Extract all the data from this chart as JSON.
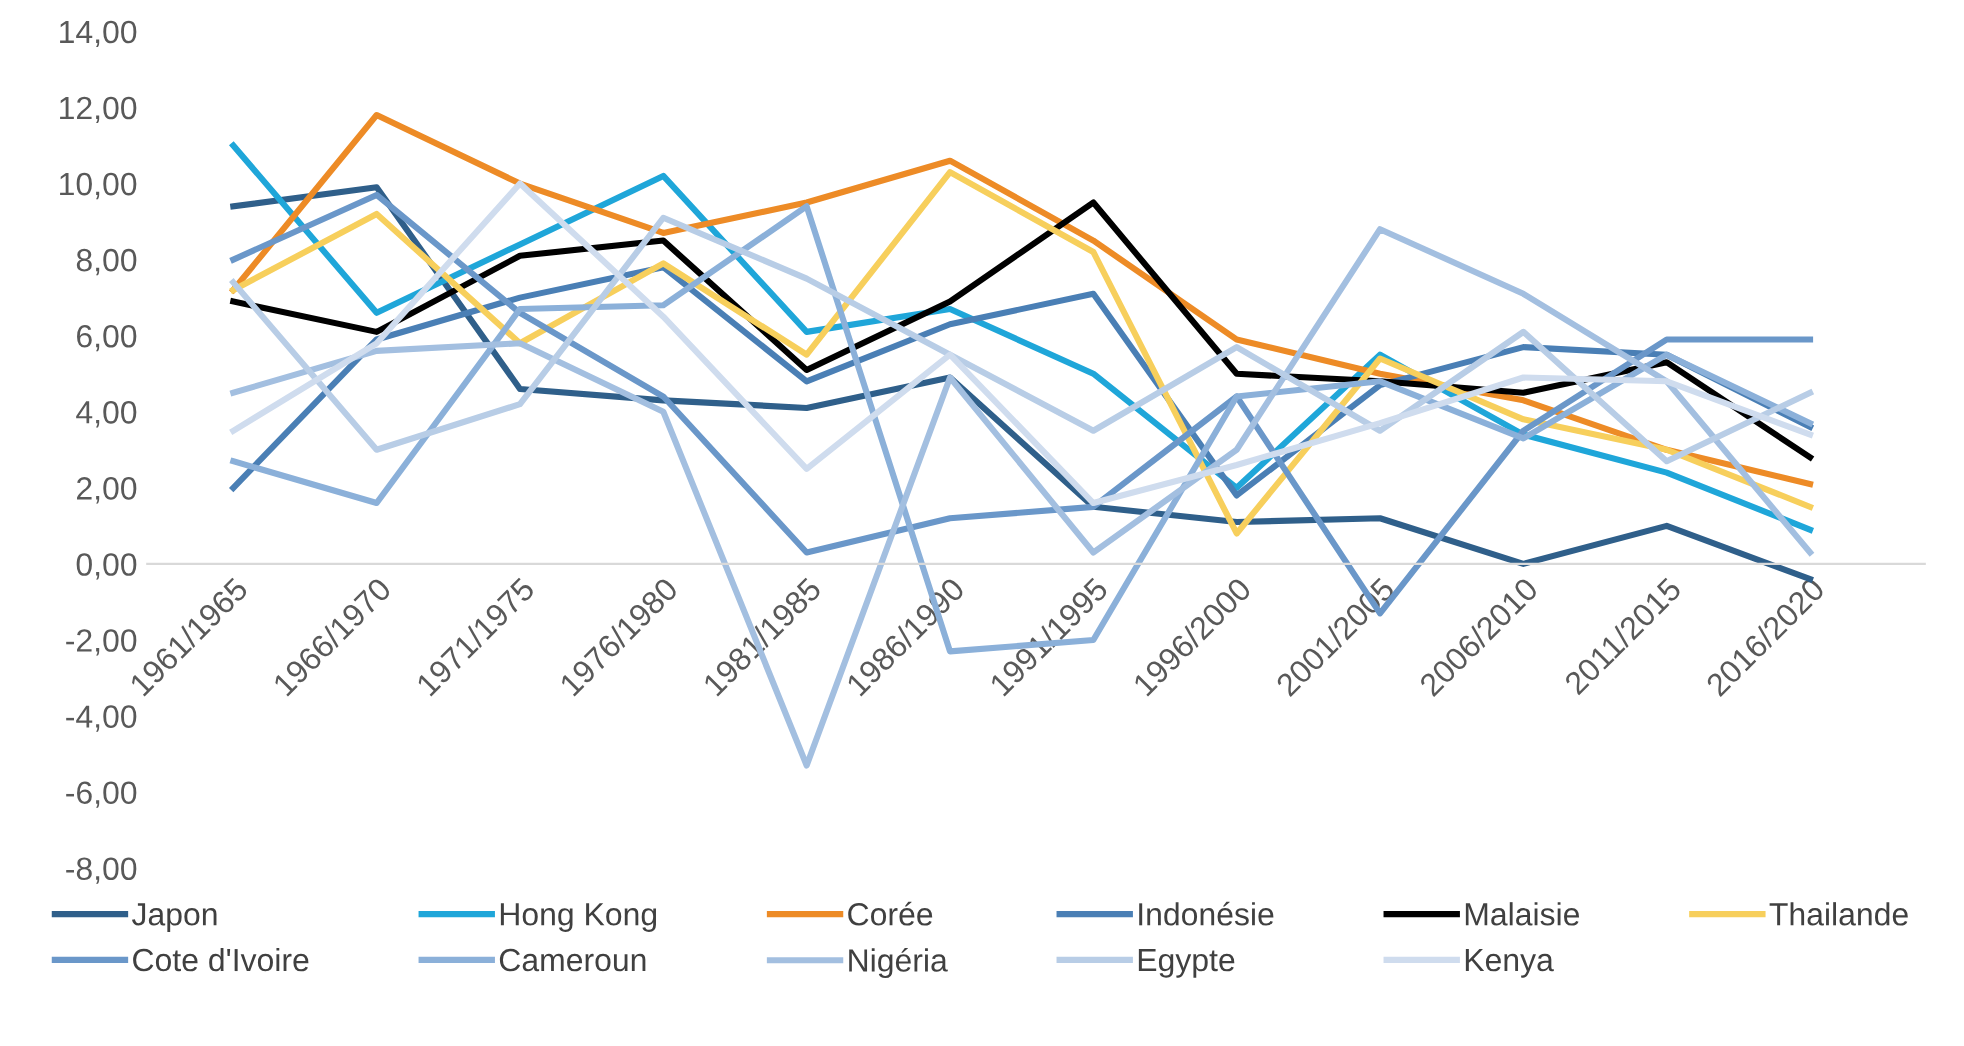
{
  "chart_data": {
    "type": "line",
    "categories": [
      "1961/1965",
      "1966/1970",
      "1971/1975",
      "1976/1980",
      "1981/1985",
      "1986/1990",
      "1991/1995",
      "1996/2000",
      "2001/2005",
      "2006/2010",
      "2011/2015",
      "2016/2020"
    ],
    "ylim": [
      -8,
      14
    ],
    "yticks": [
      {
        "value": -8,
        "label": "-8,00"
      },
      {
        "value": -6,
        "label": "-6,00"
      },
      {
        "value": -4,
        "label": "-4,00"
      },
      {
        "value": -2,
        "label": "-2,00"
      },
      {
        "value": 0,
        "label": "0,00"
      },
      {
        "value": 2,
        "label": "2,00"
      },
      {
        "value": 4,
        "label": "4,00"
      },
      {
        "value": 6,
        "label": "6,00"
      },
      {
        "value": 8,
        "label": "8,00"
      },
      {
        "value": 10,
        "label": "10,00"
      },
      {
        "value": 12,
        "label": "12,00"
      },
      {
        "value": 14,
        "label": "14,00"
      }
    ],
    "grid": false,
    "legend": "bottom",
    "marker": "none",
    "line_style": "solid",
    "series": [
      {
        "name": "Japon",
        "color": "#2f5f8a",
        "values": [
          9.4,
          9.9,
          4.6,
          4.3,
          4.1,
          4.9,
          1.5,
          1.1,
          1.2,
          0.0,
          1.0,
          -0.4
        ]
      },
      {
        "name": "Hong Kong",
        "color": "#1fa6d9",
        "values": [
          11.0,
          6.6,
          8.4,
          10.2,
          6.1,
          6.7,
          5.0,
          2.0,
          5.5,
          3.4,
          2.4,
          0.9
        ]
      },
      {
        "name": "Corée",
        "color": "#ed8b26",
        "values": [
          7.2,
          11.8,
          10.0,
          8.7,
          9.5,
          10.6,
          8.5,
          5.9,
          5.0,
          4.3,
          3.0,
          2.1
        ]
      },
      {
        "name": "Indonésie",
        "color": "#4a7fb5",
        "values": [
          2.0,
          5.9,
          7.0,
          7.8,
          4.8,
          6.3,
          7.1,
          1.8,
          4.7,
          5.7,
          5.5,
          3.6
        ]
      },
      {
        "name": "Malaisie",
        "color": "#000000",
        "values": [
          6.9,
          6.1,
          8.1,
          8.5,
          5.1,
          6.9,
          9.5,
          5.0,
          4.8,
          4.5,
          5.3,
          2.8
        ]
      },
      {
        "name": "Thailande",
        "color": "#f7cf5c",
        "values": [
          7.2,
          9.2,
          5.8,
          7.9,
          5.5,
          10.3,
          8.2,
          0.8,
          5.4,
          3.8,
          3.0,
          1.5
        ]
      },
      {
        "name": "Cote d'Ivoire",
        "color": "#6a97c9",
        "values": [
          8.0,
          9.7,
          6.6,
          4.4,
          0.3,
          1.2,
          1.5,
          4.4,
          -1.3,
          3.5,
          5.9,
          5.9
        ]
      },
      {
        "name": "Cameroun",
        "color": "#8bb0d9",
        "values": [
          2.7,
          1.6,
          6.7,
          6.8,
          9.4,
          -2.3,
          -2.0,
          4.4,
          4.8,
          3.3,
          5.5,
          3.7
        ]
      },
      {
        "name": "Nigéria",
        "color": "#a3bfe0",
        "values": [
          4.5,
          5.6,
          5.8,
          4.0,
          -5.3,
          4.9,
          0.3,
          3.0,
          8.8,
          7.1,
          4.8,
          0.3
        ]
      },
      {
        "name": "Egypte",
        "color": "#b8cde6",
        "values": [
          7.4,
          3.0,
          4.2,
          9.1,
          7.5,
          5.5,
          3.5,
          5.7,
          3.5,
          6.1,
          2.7,
          4.5
        ]
      },
      {
        "name": "Kenya",
        "color": "#cfdcee",
        "values": [
          3.5,
          5.8,
          10.0,
          6.5,
          2.5,
          5.5,
          1.6,
          2.6,
          3.7,
          4.9,
          4.8,
          3.4
        ]
      }
    ]
  }
}
